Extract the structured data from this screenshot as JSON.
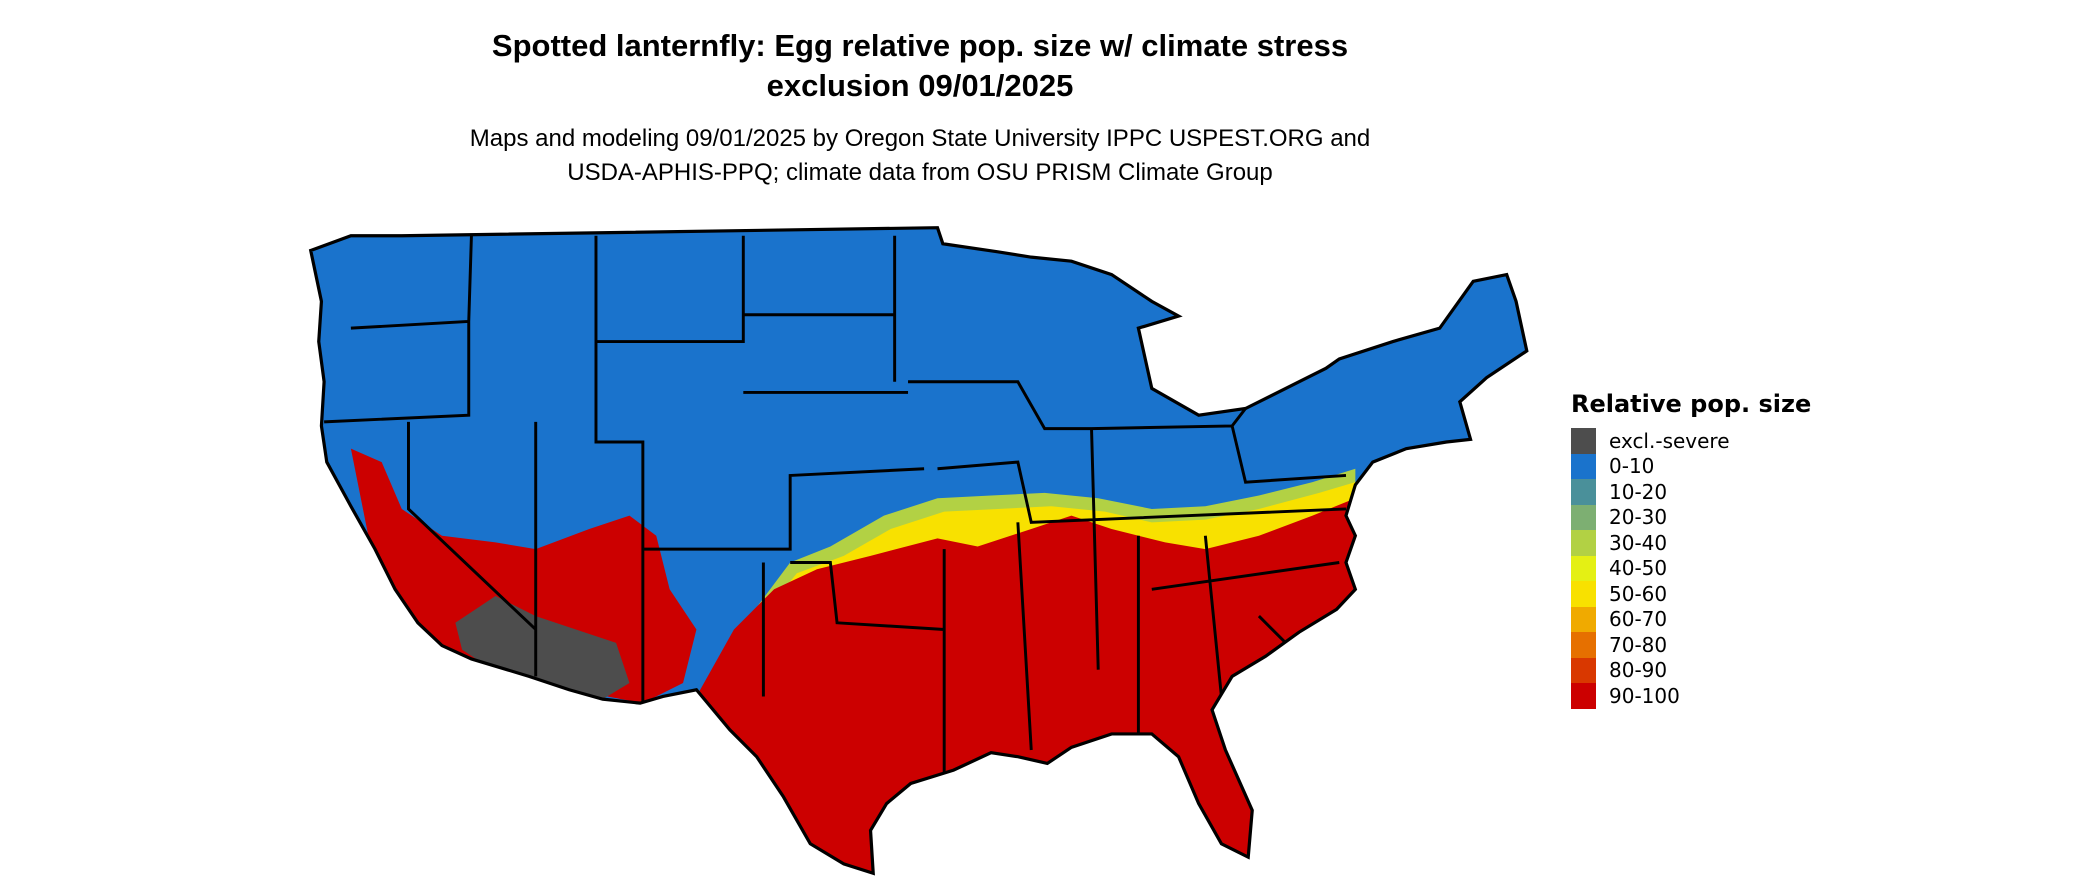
{
  "title": {
    "line1": "Spotted lanternfly: Egg relative pop. size w/ climate stress",
    "line2": "exclusion 09/01/2025"
  },
  "subtitle": {
    "line1": "Maps and modeling 09/01/2025 by Oregon State University IPPC USPEST.ORG and",
    "line2": "USDA-APHIS-PPQ; climate data from OSU PRISM Climate Group"
  },
  "chart_data": {
    "type": "heatmap",
    "region": "contiguous United States",
    "legend": {
      "title": "Relative pop. size",
      "placement": "right",
      "items": [
        {
          "label": "excl.-severe",
          "color": "#4d4d4d"
        },
        {
          "label": "0-10",
          "color": "#1a73cc"
        },
        {
          "label": "10-20",
          "color": "#4a909a"
        },
        {
          "label": "20-30",
          "color": "#7daf72"
        },
        {
          "label": "30-40",
          "color": "#b2d144"
        },
        {
          "label": "40-50",
          "color": "#e4f014"
        },
        {
          "label": "50-60",
          "color": "#f8e100"
        },
        {
          "label": "60-70",
          "color": "#f0aa00"
        },
        {
          "label": "70-80",
          "color": "#e67000"
        },
        {
          "label": "80-90",
          "color": "#d93800"
        },
        {
          "label": "90-100",
          "color": "#cc0000"
        }
      ]
    }
  }
}
